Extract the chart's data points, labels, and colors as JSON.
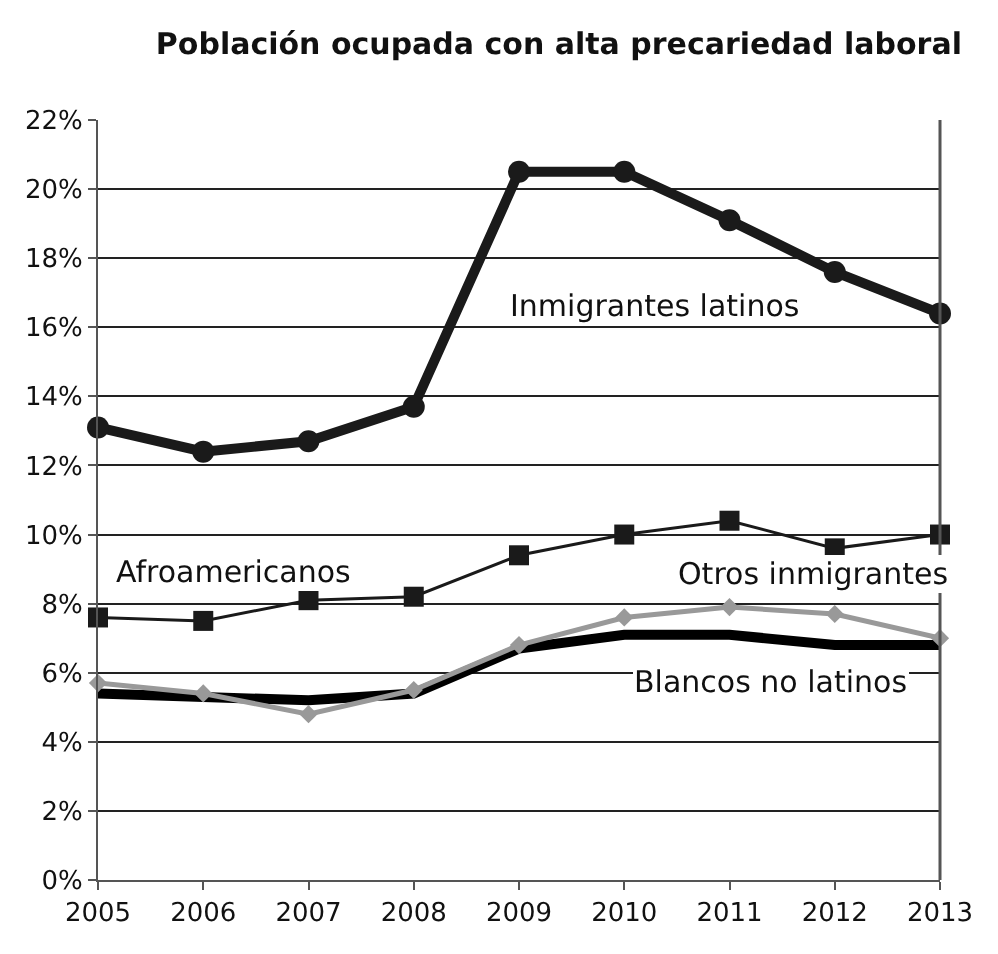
{
  "chart_data": {
    "type": "line",
    "title": "Población ocupada con alta precariedad laboral",
    "x": [
      2005,
      2006,
      2007,
      2008,
      2009,
      2010,
      2011,
      2012,
      2013
    ],
    "series": [
      {
        "name": "Inmigrantes latinos",
        "color": "#1a1a1a",
        "marker": "circle",
        "values": [
          13.1,
          12.4,
          12.7,
          13.7,
          20.5,
          20.5,
          19.1,
          17.6,
          16.4
        ]
      },
      {
        "name": "Afroamericanos",
        "color": "#1a1a1a",
        "marker": "square",
        "values": [
          7.6,
          7.5,
          8.1,
          8.2,
          9.4,
          10.0,
          10.4,
          9.6,
          10.0
        ]
      },
      {
        "name": "Otros inmigrantes",
        "color": "#999999",
        "marker": "diamond",
        "values": [
          5.7,
          5.4,
          4.8,
          5.5,
          6.8,
          7.6,
          7.9,
          7.7,
          7.0
        ]
      },
      {
        "name": "Blancos no latinos",
        "color": "#000000",
        "marker": "none",
        "values": [
          5.4,
          5.3,
          5.2,
          5.4,
          6.7,
          7.1,
          7.1,
          6.8,
          6.8
        ]
      }
    ],
    "xlim": [
      2005,
      2013
    ],
    "xticks": [
      2005,
      2006,
      2007,
      2008,
      2009,
      2010,
      2011,
      2012,
      2013
    ],
    "ylim": [
      0,
      22
    ],
    "yticks": [
      {
        "value": 0,
        "label": "0%"
      },
      {
        "value": 2,
        "label": "2%"
      },
      {
        "value": 4,
        "label": "4%"
      },
      {
        "value": 6,
        "label": "6%"
      },
      {
        "value": 8,
        "label": "8%"
      },
      {
        "value": 10,
        "label": "10%"
      },
      {
        "value": 12,
        "label": "12%"
      },
      {
        "value": 14,
        "label": "14%"
      },
      {
        "value": 16,
        "label": "16%"
      },
      {
        "value": 18,
        "label": "18%"
      },
      {
        "value": 20,
        "label": "20%"
      },
      {
        "value": 22,
        "label": "22%"
      }
    ],
    "grid": "y",
    "legend": false,
    "line_style": "solid"
  }
}
